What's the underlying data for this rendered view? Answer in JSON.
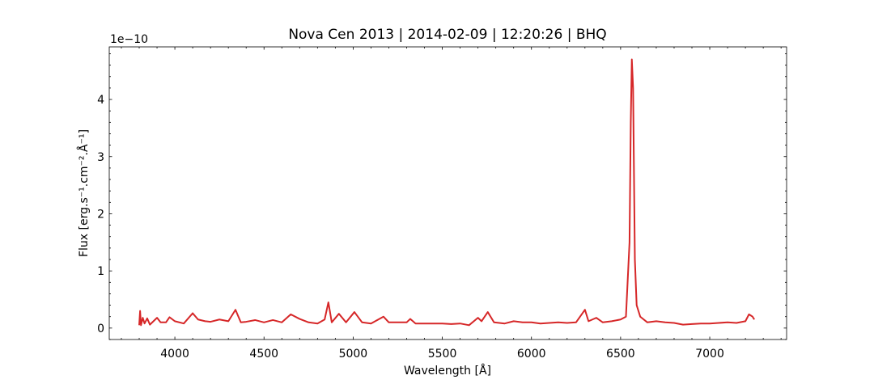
{
  "chart_data": {
    "type": "line",
    "title": "Nova Cen 2013 | 2014-02-09 | 12:20:26 | BHQ",
    "x_label": "Wavelength [Å]",
    "y_label": "Flux [erg.s⁻¹.cm⁻².Å⁻¹]",
    "y_offset_label": "1e−10",
    "xlim": [
      3632,
      7431
    ],
    "ylim": [
      -0.2,
      4.92
    ],
    "xticks": [
      4000,
      4500,
      5000,
      5500,
      6000,
      6500,
      7000
    ],
    "yticks": [
      0,
      1,
      2,
      3,
      4
    ],
    "xminorticks": [
      3700,
      3800,
      3900,
      4100,
      4200,
      4300,
      4400,
      4600,
      4700,
      4800,
      4900,
      5100,
      5200,
      5300,
      5400,
      5600,
      5700,
      5800,
      5900,
      6100,
      6200,
      6300,
      6400,
      6600,
      6700,
      6800,
      6900,
      7100,
      7200,
      7300,
      7400
    ],
    "yminorticks": [
      -0.2,
      0.2,
      0.4,
      0.6,
      0.8,
      1.2,
      1.4,
      1.6,
      1.8,
      2.2,
      2.4,
      2.6,
      2.8,
      3.2,
      3.4,
      3.6,
      3.8,
      4.2,
      4.4,
      4.6,
      4.8
    ],
    "grid": false,
    "series": [
      {
        "color": "#d62728",
        "x": [
          3800,
          3805,
          3810,
          3820,
          3830,
          3845,
          3860,
          3880,
          3900,
          3920,
          3950,
          3970,
          4000,
          4050,
          4100,
          4130,
          4170,
          4200,
          4250,
          4300,
          4340,
          4370,
          4400,
          4450,
          4500,
          4550,
          4600,
          4650,
          4700,
          4750,
          4800,
          4840,
          4861,
          4880,
          4920,
          4960,
          5007,
          5050,
          5100,
          5170,
          5200,
          5250,
          5300,
          5320,
          5350,
          5400,
          5500,
          5550,
          5600,
          5650,
          5700,
          5720,
          5755,
          5790,
          5850,
          5900,
          5950,
          6000,
          6050,
          6100,
          6150,
          6200,
          6250,
          6300,
          6320,
          6364,
          6400,
          6450,
          6500,
          6530,
          6550,
          6557,
          6563,
          6570,
          6580,
          6590,
          6610,
          6650,
          6700,
          6750,
          6800,
          6850,
          6900,
          6950,
          7000,
          7050,
          7100,
          7150,
          7200,
          7220,
          7240,
          7250
        ],
        "values": [
          0.05,
          0.3,
          0.05,
          0.18,
          0.08,
          0.17,
          0.06,
          0.12,
          0.18,
          0.1,
          0.1,
          0.19,
          0.12,
          0.08,
          0.26,
          0.15,
          0.12,
          0.11,
          0.15,
          0.12,
          0.32,
          0.1,
          0.11,
          0.14,
          0.1,
          0.14,
          0.1,
          0.24,
          0.16,
          0.1,
          0.08,
          0.15,
          0.45,
          0.1,
          0.25,
          0.1,
          0.28,
          0.1,
          0.08,
          0.2,
          0.1,
          0.1,
          0.1,
          0.16,
          0.08,
          0.08,
          0.08,
          0.07,
          0.08,
          0.05,
          0.18,
          0.12,
          0.28,
          0.1,
          0.08,
          0.12,
          0.1,
          0.1,
          0.08,
          0.09,
          0.1,
          0.09,
          0.1,
          0.32,
          0.12,
          0.18,
          0.1,
          0.12,
          0.15,
          0.2,
          1.5,
          3.6,
          4.7,
          4.2,
          1.2,
          0.4,
          0.2,
          0.1,
          0.12,
          0.1,
          0.09,
          0.06,
          0.07,
          0.08,
          0.08,
          0.09,
          0.1,
          0.09,
          0.12,
          0.24,
          0.2,
          0.15
        ]
      }
    ]
  }
}
